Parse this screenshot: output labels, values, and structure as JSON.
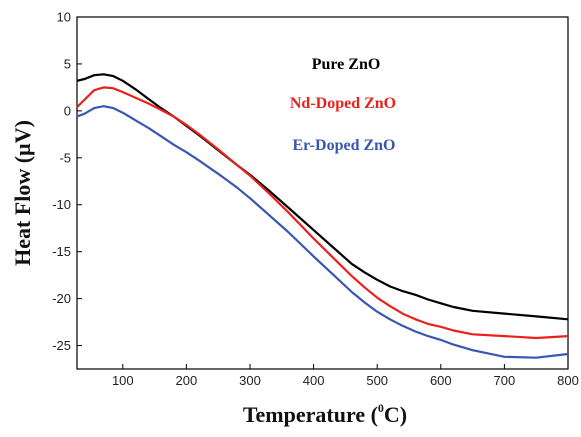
{
  "chart_data": {
    "type": "line",
    "title": "",
    "xlabel": "Temperature (",
    "xlabel_sup": "0",
    "xlabel_end": "C)",
    "ylabel": "Heat Flow (µV)",
    "xlim": [
      28,
      800
    ],
    "ylim": [
      -27.5,
      10
    ],
    "x_ticks": [
      100,
      200,
      300,
      400,
      500,
      600,
      700,
      800
    ],
    "y_ticks": [
      10,
      5,
      0,
      -5,
      -10,
      -15,
      -20,
      -25
    ],
    "grid": false,
    "legend_position": "top-right",
    "series": [
      {
        "name": "Pure ZnO",
        "color": "#000000",
        "x": [
          28,
          40,
          55,
          70,
          85,
          100,
          120,
          140,
          160,
          180,
          200,
          220,
          250,
          280,
          300,
          330,
          360,
          400,
          430,
          460,
          480,
          500,
          520,
          540,
          560,
          580,
          600,
          620,
          650,
          700,
          750,
          800
        ],
        "y": [
          3.2,
          3.4,
          3.8,
          3.9,
          3.7,
          3.2,
          2.3,
          1.3,
          0.3,
          -0.6,
          -1.6,
          -2.6,
          -4.2,
          -5.8,
          -6.8,
          -8.5,
          -10.3,
          -12.7,
          -14.5,
          -16.3,
          -17.2,
          -18.0,
          -18.7,
          -19.2,
          -19.6,
          -20.1,
          -20.5,
          -20.9,
          -21.3,
          -21.6,
          -21.9,
          -22.2
        ]
      },
      {
        "name": "Nd-Doped ZnO",
        "color": "#e8221b",
        "x": [
          28,
          40,
          55,
          70,
          85,
          100,
          120,
          140,
          160,
          180,
          200,
          220,
          250,
          280,
          300,
          330,
          360,
          400,
          430,
          460,
          480,
          500,
          520,
          540,
          560,
          580,
          600,
          620,
          650,
          700,
          750,
          800
        ],
        "y": [
          0.4,
          1.2,
          2.2,
          2.5,
          2.4,
          2.0,
          1.4,
          0.8,
          0.1,
          -0.6,
          -1.5,
          -2.5,
          -4.1,
          -5.8,
          -6.9,
          -8.8,
          -10.8,
          -13.6,
          -15.6,
          -17.6,
          -18.8,
          -19.9,
          -20.8,
          -21.6,
          -22.2,
          -22.7,
          -23.0,
          -23.4,
          -23.8,
          -24.0,
          -24.2,
          -24.0
        ]
      },
      {
        "name": "Er-Doped ZnO",
        "color": "#3a56b0",
        "x": [
          28,
          40,
          55,
          70,
          85,
          100,
          120,
          140,
          160,
          180,
          200,
          220,
          250,
          280,
          300,
          330,
          360,
          400,
          430,
          460,
          480,
          500,
          520,
          540,
          560,
          580,
          600,
          620,
          650,
          700,
          750,
          800
        ],
        "y": [
          -0.6,
          -0.3,
          0.3,
          0.5,
          0.3,
          -0.2,
          -1.0,
          -1.8,
          -2.7,
          -3.6,
          -4.4,
          -5.3,
          -6.7,
          -8.2,
          -9.3,
          -11.1,
          -12.9,
          -15.5,
          -17.4,
          -19.3,
          -20.4,
          -21.4,
          -22.2,
          -22.9,
          -23.5,
          -24.0,
          -24.4,
          -24.9,
          -25.5,
          -26.2,
          -26.3,
          -25.9
        ]
      }
    ]
  }
}
